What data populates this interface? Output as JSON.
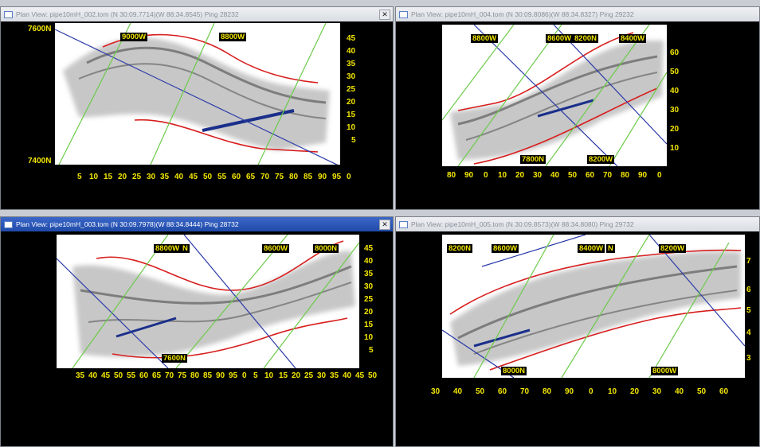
{
  "colors": {
    "axis_label": "#f2e600",
    "edge_line": "#d81e1e",
    "blue_line": "#2a3aa8",
    "green_line": "#6ccb4a",
    "title_active": "#1f4aa8"
  },
  "windows": [
    {
      "title": "Plan View: pipe10mH_002.tom (N 30:09.7714)(W 88:34.8545) Ping 28232",
      "active": false,
      "has_close": true,
      "close_label": "✕",
      "top_labels": [
        "7600N",
        "7400N"
      ],
      "grid_labels": [
        "9000W",
        "8800W"
      ],
      "x_ticks": [
        "5",
        "10",
        "15",
        "20",
        "25",
        "30",
        "35",
        "40",
        "45",
        "50",
        "55",
        "60",
        "65",
        "70",
        "75",
        "80",
        "85",
        "90",
        "95",
        "0"
      ],
      "y_ticks": [
        "45",
        "40",
        "35",
        "30",
        "25",
        "20",
        "15",
        "10",
        "5"
      ]
    },
    {
      "title": "Plan View: pipe10mH_004.tom (N 30:09.8086)(W 88:34.8327) Ping 29232",
      "active": false,
      "has_close": false,
      "close_label": "",
      "top_labels": [],
      "grid_labels": [
        "8800W",
        "8600W",
        "8200N",
        "8400W",
        "7800N",
        "8200W"
      ],
      "x_ticks": [
        "80",
        "90",
        "0",
        "10",
        "20",
        "30",
        "40",
        "50",
        "60",
        "70",
        "80",
        "90",
        "0"
      ],
      "y_ticks": [
        "60",
        "50",
        "40",
        "30",
        "20",
        "10"
      ]
    },
    {
      "title": "Plan View: pipe10mH_003.tom (N 30:09.7978)(W 88:34.8444) Ping 28732",
      "active": true,
      "has_close": true,
      "close_label": "✕",
      "top_labels": [],
      "grid_labels": [
        "8800W",
        "8600W",
        "8000N",
        "7600N",
        "N"
      ],
      "x_ticks": [
        "35",
        "40",
        "45",
        "50",
        "55",
        "60",
        "65",
        "70",
        "75",
        "80",
        "85",
        "90",
        "95",
        "0",
        "5",
        "10",
        "15",
        "20",
        "25",
        "30",
        "35",
        "40",
        "45",
        "50"
      ],
      "y_ticks": [
        "45",
        "40",
        "35",
        "30",
        "25",
        "20",
        "15",
        "10",
        "5"
      ]
    },
    {
      "title": "Plan View: pipe10mH_005.tom (N 30:09.8573)(W 88:34.8080) Ping 29732",
      "active": false,
      "has_close": false,
      "close_label": "",
      "top_labels": [],
      "grid_labels": [
        "8200N",
        "8600W",
        "8400W",
        "8200W",
        "8000N",
        "8000W",
        "N"
      ],
      "x_ticks": [
        "30",
        "40",
        "50",
        "60",
        "70",
        "80",
        "90",
        "0",
        "10",
        "20",
        "30",
        "40",
        "50",
        "60"
      ],
      "y_ticks": [
        "7",
        "6",
        "5",
        "4",
        "3"
      ]
    }
  ]
}
